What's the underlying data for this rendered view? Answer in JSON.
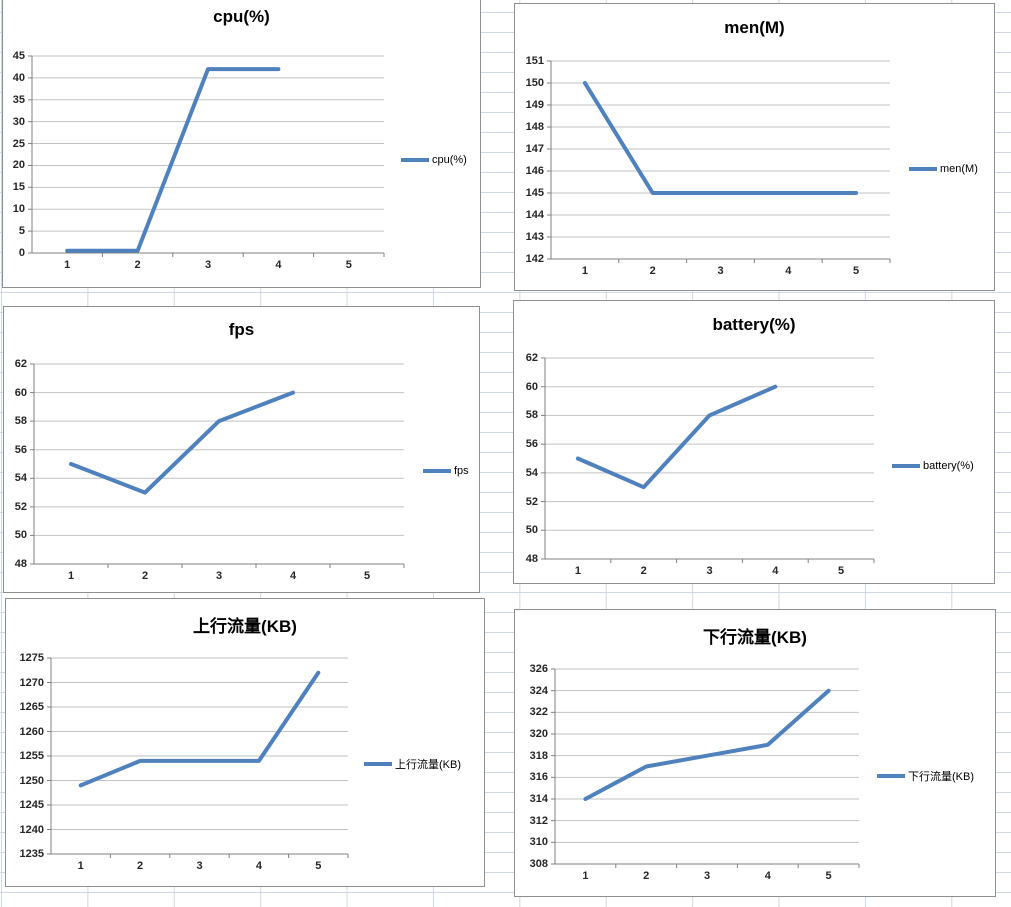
{
  "app": {
    "description_label": "Excel worksheet with six embedded performance line charts"
  },
  "sheet": {
    "grid_color": "#d0d7e5"
  },
  "chart_style": {
    "series_color": "#4f81bd",
    "gridline_color": "#c2c2c2",
    "axis_color": "#808080",
    "border_color": "#8f8f8f",
    "title_color": "#000000"
  },
  "chart_data": [
    {
      "id": "cpu",
      "type": "line",
      "title": "cpu(%)",
      "legend": "cpu(%)",
      "legend_position": "right",
      "grid": true,
      "categories": [
        "1",
        "2",
        "3",
        "4",
        "5"
      ],
      "values": [
        0.5,
        0.5,
        42,
        42,
        null
      ],
      "ylim": [
        0,
        45
      ],
      "ystep": 5,
      "yticks": [
        "45",
        "40",
        "35",
        "30",
        "25",
        "20",
        "15",
        "10",
        "5",
        "0"
      ]
    },
    {
      "id": "men",
      "type": "line",
      "title": "men(M)",
      "legend": "men(M)",
      "legend_position": "right",
      "grid": true,
      "categories": [
        "1",
        "2",
        "3",
        "4",
        "5"
      ],
      "values": [
        150,
        145,
        145,
        145,
        145
      ],
      "ylim": [
        142,
        151
      ],
      "ystep": 1,
      "yticks": [
        "151",
        "150",
        "149",
        "148",
        "147",
        "146",
        "145",
        "144",
        "143",
        "142"
      ]
    },
    {
      "id": "fps",
      "type": "line",
      "title": "fps",
      "legend": "fps",
      "legend_position": "right",
      "grid": true,
      "categories": [
        "1",
        "2",
        "3",
        "4",
        "5"
      ],
      "values": [
        55,
        53,
        58,
        60,
        null
      ],
      "ylim": [
        48,
        62
      ],
      "ystep": 2,
      "yticks": [
        "62",
        "60",
        "58",
        "56",
        "54",
        "52",
        "50",
        "48"
      ]
    },
    {
      "id": "battery",
      "type": "line",
      "title": "battery(%)",
      "legend": "battery(%)",
      "legend_position": "right",
      "grid": true,
      "categories": [
        "1",
        "2",
        "3",
        "4",
        "5"
      ],
      "values": [
        55,
        53,
        58,
        60,
        null
      ],
      "ylim": [
        48,
        62
      ],
      "ystep": 2,
      "yticks": [
        "62",
        "60",
        "58",
        "56",
        "54",
        "52",
        "50",
        "48"
      ]
    },
    {
      "id": "upstream",
      "type": "line",
      "title": "上行流量(KB)",
      "legend": "上行流量(KB)",
      "legend_position": "right",
      "grid": true,
      "categories": [
        "1",
        "2",
        "3",
        "4",
        "5"
      ],
      "values": [
        1249,
        1254,
        1254,
        1254,
        1272
      ],
      "ylim": [
        1235,
        1275
      ],
      "ystep": 5,
      "yticks": [
        "1275",
        "1270",
        "1265",
        "1260",
        "1255",
        "1250",
        "1245",
        "1240",
        "1235"
      ]
    },
    {
      "id": "downstream",
      "type": "line",
      "title": "下行流量(KB)",
      "legend": "下行流量(KB)",
      "legend_position": "right",
      "grid": true,
      "categories": [
        "1",
        "2",
        "3",
        "4",
        "5"
      ],
      "values": [
        314,
        317,
        318,
        319,
        324
      ],
      "ylim": [
        308,
        326
      ],
      "ystep": 2,
      "yticks": [
        "326",
        "324",
        "322",
        "320",
        "318",
        "316",
        "314",
        "312",
        "310",
        "308"
      ]
    }
  ]
}
